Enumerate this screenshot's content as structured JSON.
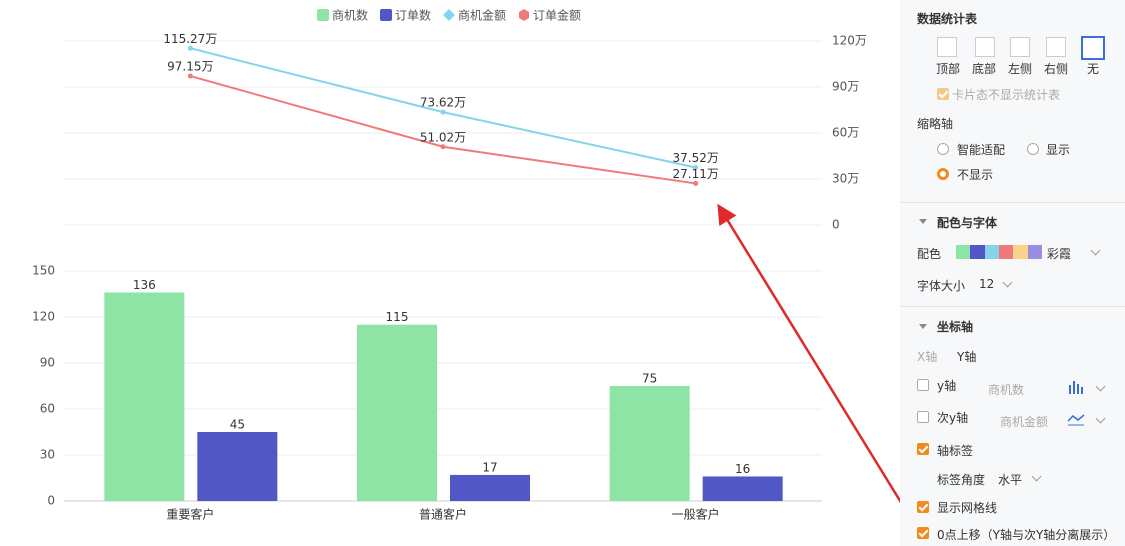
{
  "chart_data": {
    "type": "combo",
    "categories": [
      "重要客户",
      "普通客户",
      "一般客户"
    ],
    "series": [
      {
        "name": "商机数",
        "type": "bar",
        "color": "#8ee4a4",
        "values": [
          136,
          115,
          75
        ]
      },
      {
        "name": "订单数",
        "type": "bar",
        "color": "#5157c4",
        "values": [
          45,
          17,
          16
        ]
      },
      {
        "name": "商机金额",
        "type": "line",
        "axis": "y2",
        "color": "#87d3ea",
        "values": [
          115.27,
          73.62,
          37.52
        ],
        "value_labels": [
          "115.27万",
          "73.62万",
          "37.52万"
        ]
      },
      {
        "name": "订单金额",
        "type": "line",
        "axis": "y2",
        "color": "#f07a7a",
        "values": [
          97.15,
          51.02,
          27.11
        ],
        "value_labels": [
          "97.15万",
          "51.02万",
          "27.11万"
        ]
      }
    ],
    "ylim": [
      0,
      150
    ],
    "yticks": [
      0,
      30,
      60,
      90,
      120,
      150
    ],
    "y2lim": [
      0,
      120
    ],
    "y2ticks": [
      0,
      {
        "value": 30,
        "label": "30万"
      },
      {
        "value": 60,
        "label": "60万"
      },
      {
        "value": 90,
        "label": "90万"
      },
      {
        "value": 120,
        "label": "120万"
      }
    ],
    "grid": true,
    "legend": "top"
  },
  "panel": {
    "stats_table": {
      "title": "数据统计表",
      "positions": [
        "顶部",
        "底部",
        "左侧",
        "右侧",
        "无"
      ],
      "card_option": "卡片态不显示统计表"
    },
    "thumbnail_axis": {
      "title": "缩略轴",
      "options": [
        "智能适配",
        "显示",
        "不显示"
      ]
    },
    "color_font": {
      "title": "配色与字体",
      "palette_label": "配色",
      "palette_name": "彩霞",
      "font_size_label": "字体大小",
      "font_size": 12
    },
    "axis": {
      "title": "坐标轴",
      "tabs": [
        "X轴",
        "Y轴"
      ],
      "y_axis": {
        "label": "y轴",
        "field": "商机数"
      },
      "y2_axis": {
        "label": "次y轴",
        "field": "商机金额"
      },
      "axis_label": "轴标签",
      "label_angle_label": "标签角度",
      "label_angle": "水平",
      "grid_lines": "显示网格线",
      "zero_shift": "0点上移（Y轴与次Y轴分离展示）"
    }
  }
}
